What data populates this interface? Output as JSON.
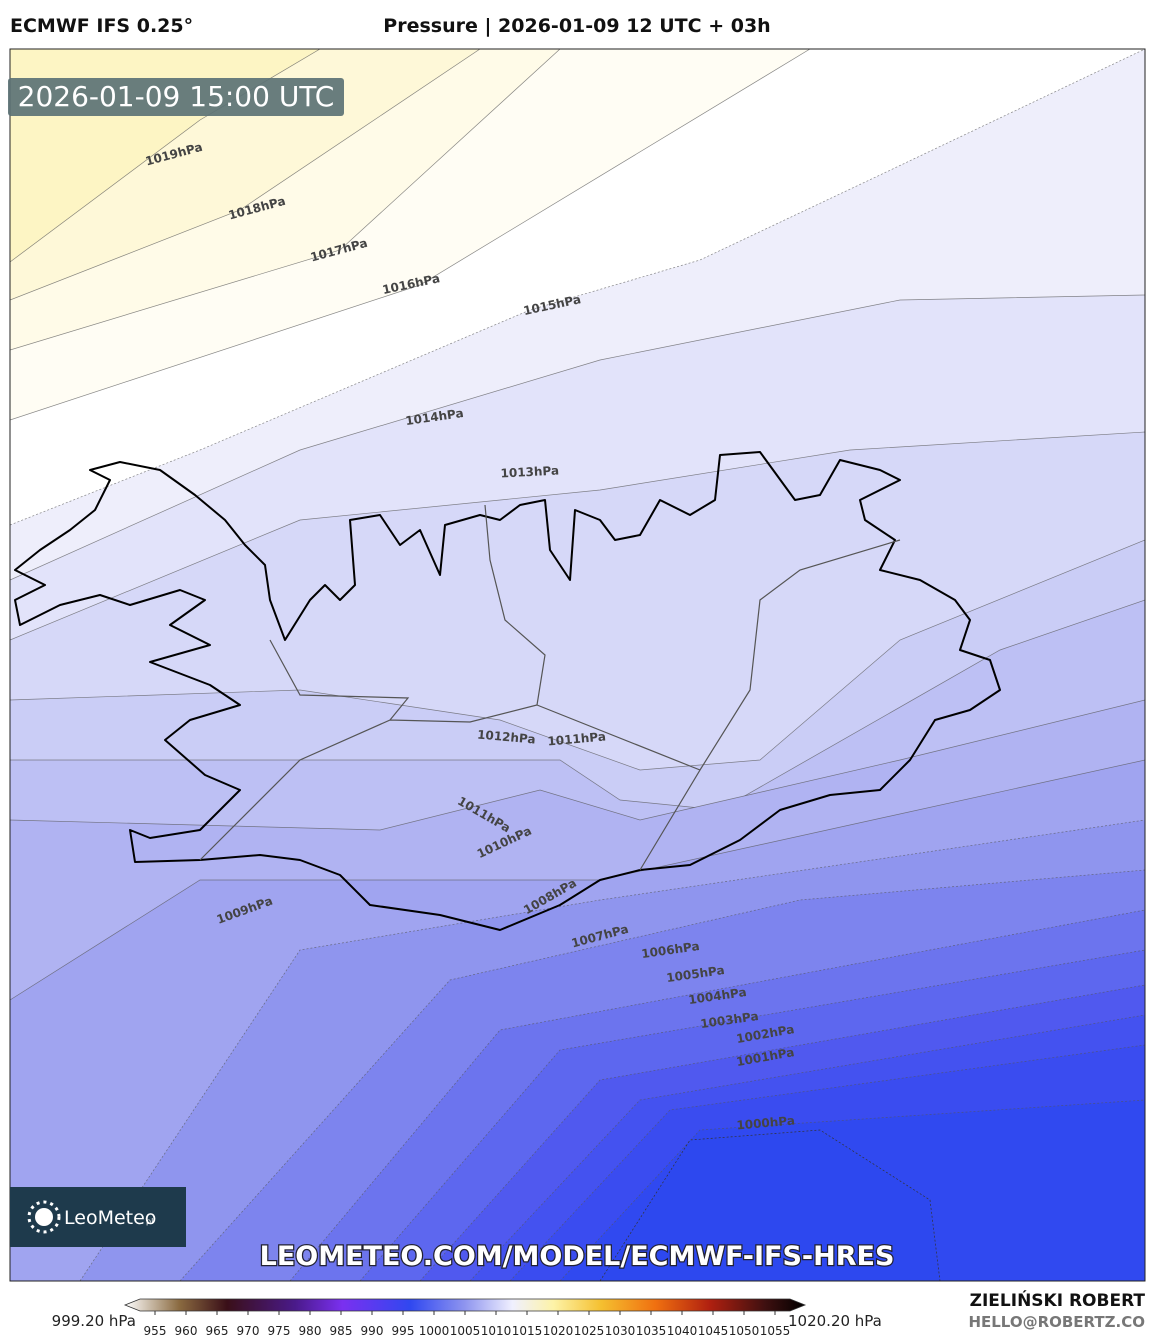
{
  "header": {
    "model": "ECMWF IFS 0.25°",
    "title": "Pressure | 2026-01-09 12 UTC + 03h"
  },
  "map": {
    "timestamp": "2026-01-09 15:00 UTC",
    "contour_labels": [
      "1019hPa",
      "1018hPa",
      "1017hPa",
      "1016hPa",
      "1015hPa",
      "1014hPa",
      "1013hPa",
      "1012hPa",
      "1011hPa",
      "1011hPa",
      "1010hPa",
      "1009hPa",
      "1008hPa",
      "1007hPa",
      "1006hPa",
      "1005hPa",
      "1004hPa",
      "1003hPa",
      "1002hPa",
      "1001hPa",
      "1000hPa"
    ],
    "watermark": "LEOMETEO.COM/MODEL/ECMWF-IFS-HRES",
    "logo": {
      "name": "LeoMeteo",
      "suffix": "pl"
    }
  },
  "colorbar": {
    "min_label": "999.20 hPa",
    "max_label": "1020.20 hPa",
    "ticks": [
      955,
      960,
      965,
      970,
      975,
      980,
      985,
      990,
      995,
      1000,
      1005,
      1010,
      1015,
      1020,
      1025,
      1030,
      1035,
      1040,
      1045,
      1050,
      1055
    ]
  },
  "credits": {
    "author": "ZIELIŃSKI ROBERT",
    "email": "HELLO@ROBERTZ.CO"
  }
}
